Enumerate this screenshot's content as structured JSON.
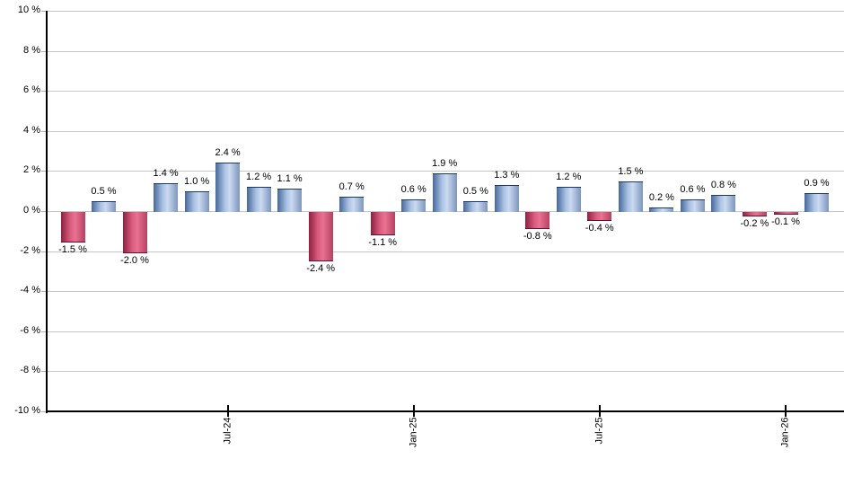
{
  "chart_data": {
    "type": "bar",
    "title": "",
    "unit": "%",
    "values": [
      -1.5,
      0.5,
      -2.0,
      1.4,
      1.0,
      2.4,
      1.2,
      1.1,
      -2.4,
      0.7,
      -1.1,
      0.6,
      1.9,
      0.5,
      1.3,
      -0.8,
      1.2,
      -0.4,
      1.5,
      0.2,
      0.6,
      0.8,
      -0.2,
      -0.1,
      0.9
    ],
    "bar_labels": [
      "-1.5 %",
      "0.5 %",
      "-2.0 %",
      "1.4 %",
      "1.0 %",
      "2.4 %",
      "1.2 %",
      "1.1 %",
      "-2.4 %",
      "0.7 %",
      "-1.1 %",
      "0.6 %",
      "1.9 %",
      "0.5 %",
      "1.3 %",
      "-0.8 %",
      "1.2 %",
      "-0.4 %",
      "1.5 %",
      "0.2 %",
      "0.6 %",
      "0.8 %",
      "-0.2 %",
      "-0.1 %",
      "0.9 %"
    ],
    "x_ticks": [
      {
        "bar_index": 5,
        "label": "Jul-24"
      },
      {
        "bar_index": 11,
        "label": "Jan-25"
      },
      {
        "bar_index": 17,
        "label": "Jul-25"
      },
      {
        "bar_index": 23,
        "label": "Jan-26"
      }
    ],
    "y_ticks": [
      {
        "value": 10,
        "label": "10 %"
      },
      {
        "value": 8,
        "label": "8 %"
      },
      {
        "value": 6,
        "label": "6 %"
      },
      {
        "value": 4,
        "label": "4 %"
      },
      {
        "value": 2,
        "label": "2 %"
      },
      {
        "value": 0,
        "label": "0 %"
      },
      {
        "value": -2,
        "label": "-2 %"
      },
      {
        "value": -4,
        "label": "-4 %"
      },
      {
        "value": -6,
        "label": "-6 %"
      },
      {
        "value": -8,
        "label": "-8 %"
      },
      {
        "value": -10,
        "label": "-10 %"
      }
    ],
    "ylim": [
      -10,
      10
    ],
    "grid": true,
    "legend": "none",
    "colors": {
      "positive_gradient": [
        "#47689b",
        "#a9c2e3",
        "#cbdaf0",
        "#7e96bd"
      ],
      "negative_gradient": [
        "#8e2040",
        "#d95c7d",
        "#ea7191",
        "#b54263"
      ],
      "gridline": "#c6c6c6",
      "axis": "#000000",
      "text": "#000000",
      "background": "#ffffff"
    }
  }
}
